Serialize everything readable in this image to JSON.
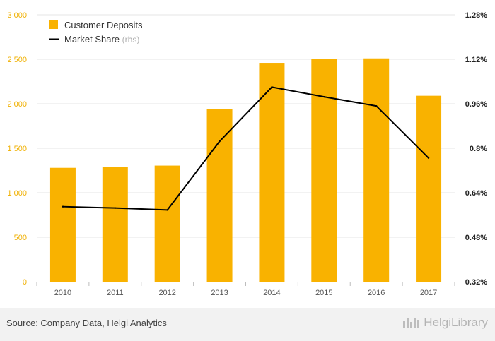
{
  "chart_data": {
    "type": "bar+line",
    "categories": [
      "2010",
      "2011",
      "2012",
      "2013",
      "2014",
      "2015",
      "2016",
      "2017"
    ],
    "series": [
      {
        "name": "Customer Deposits",
        "type": "bar",
        "axis": "left",
        "color": "#f9b200",
        "values": [
          1280,
          1290,
          1305,
          1940,
          2460,
          2500,
          2510,
          2090
        ]
      },
      {
        "name": "Market Share",
        "suffix": "(rhs)",
        "type": "line",
        "axis": "right",
        "color": "#000000",
        "values": [
          0.59,
          0.585,
          0.578,
          0.825,
          1.02,
          0.985,
          0.952,
          0.765
        ]
      }
    ],
    "left_axis": {
      "ylim": [
        0,
        3000
      ],
      "ticks": [
        "0",
        "500",
        "1 000",
        "1 500",
        "2 000",
        "2 500",
        "3 000"
      ],
      "color": "#f0b000"
    },
    "right_axis": {
      "ylim": [
        0.32,
        1.28
      ],
      "ticks": [
        "0.32%",
        "0.48%",
        "0.64%",
        "0.8%",
        "0.96%",
        "1.12%",
        "1.28%"
      ],
      "color": "#222222"
    },
    "legend_position": "top-left",
    "grid": "horizontal"
  },
  "footer": {
    "source": "Source: Company Data, Helgi Analytics",
    "brand": "HelgiLibrary"
  }
}
